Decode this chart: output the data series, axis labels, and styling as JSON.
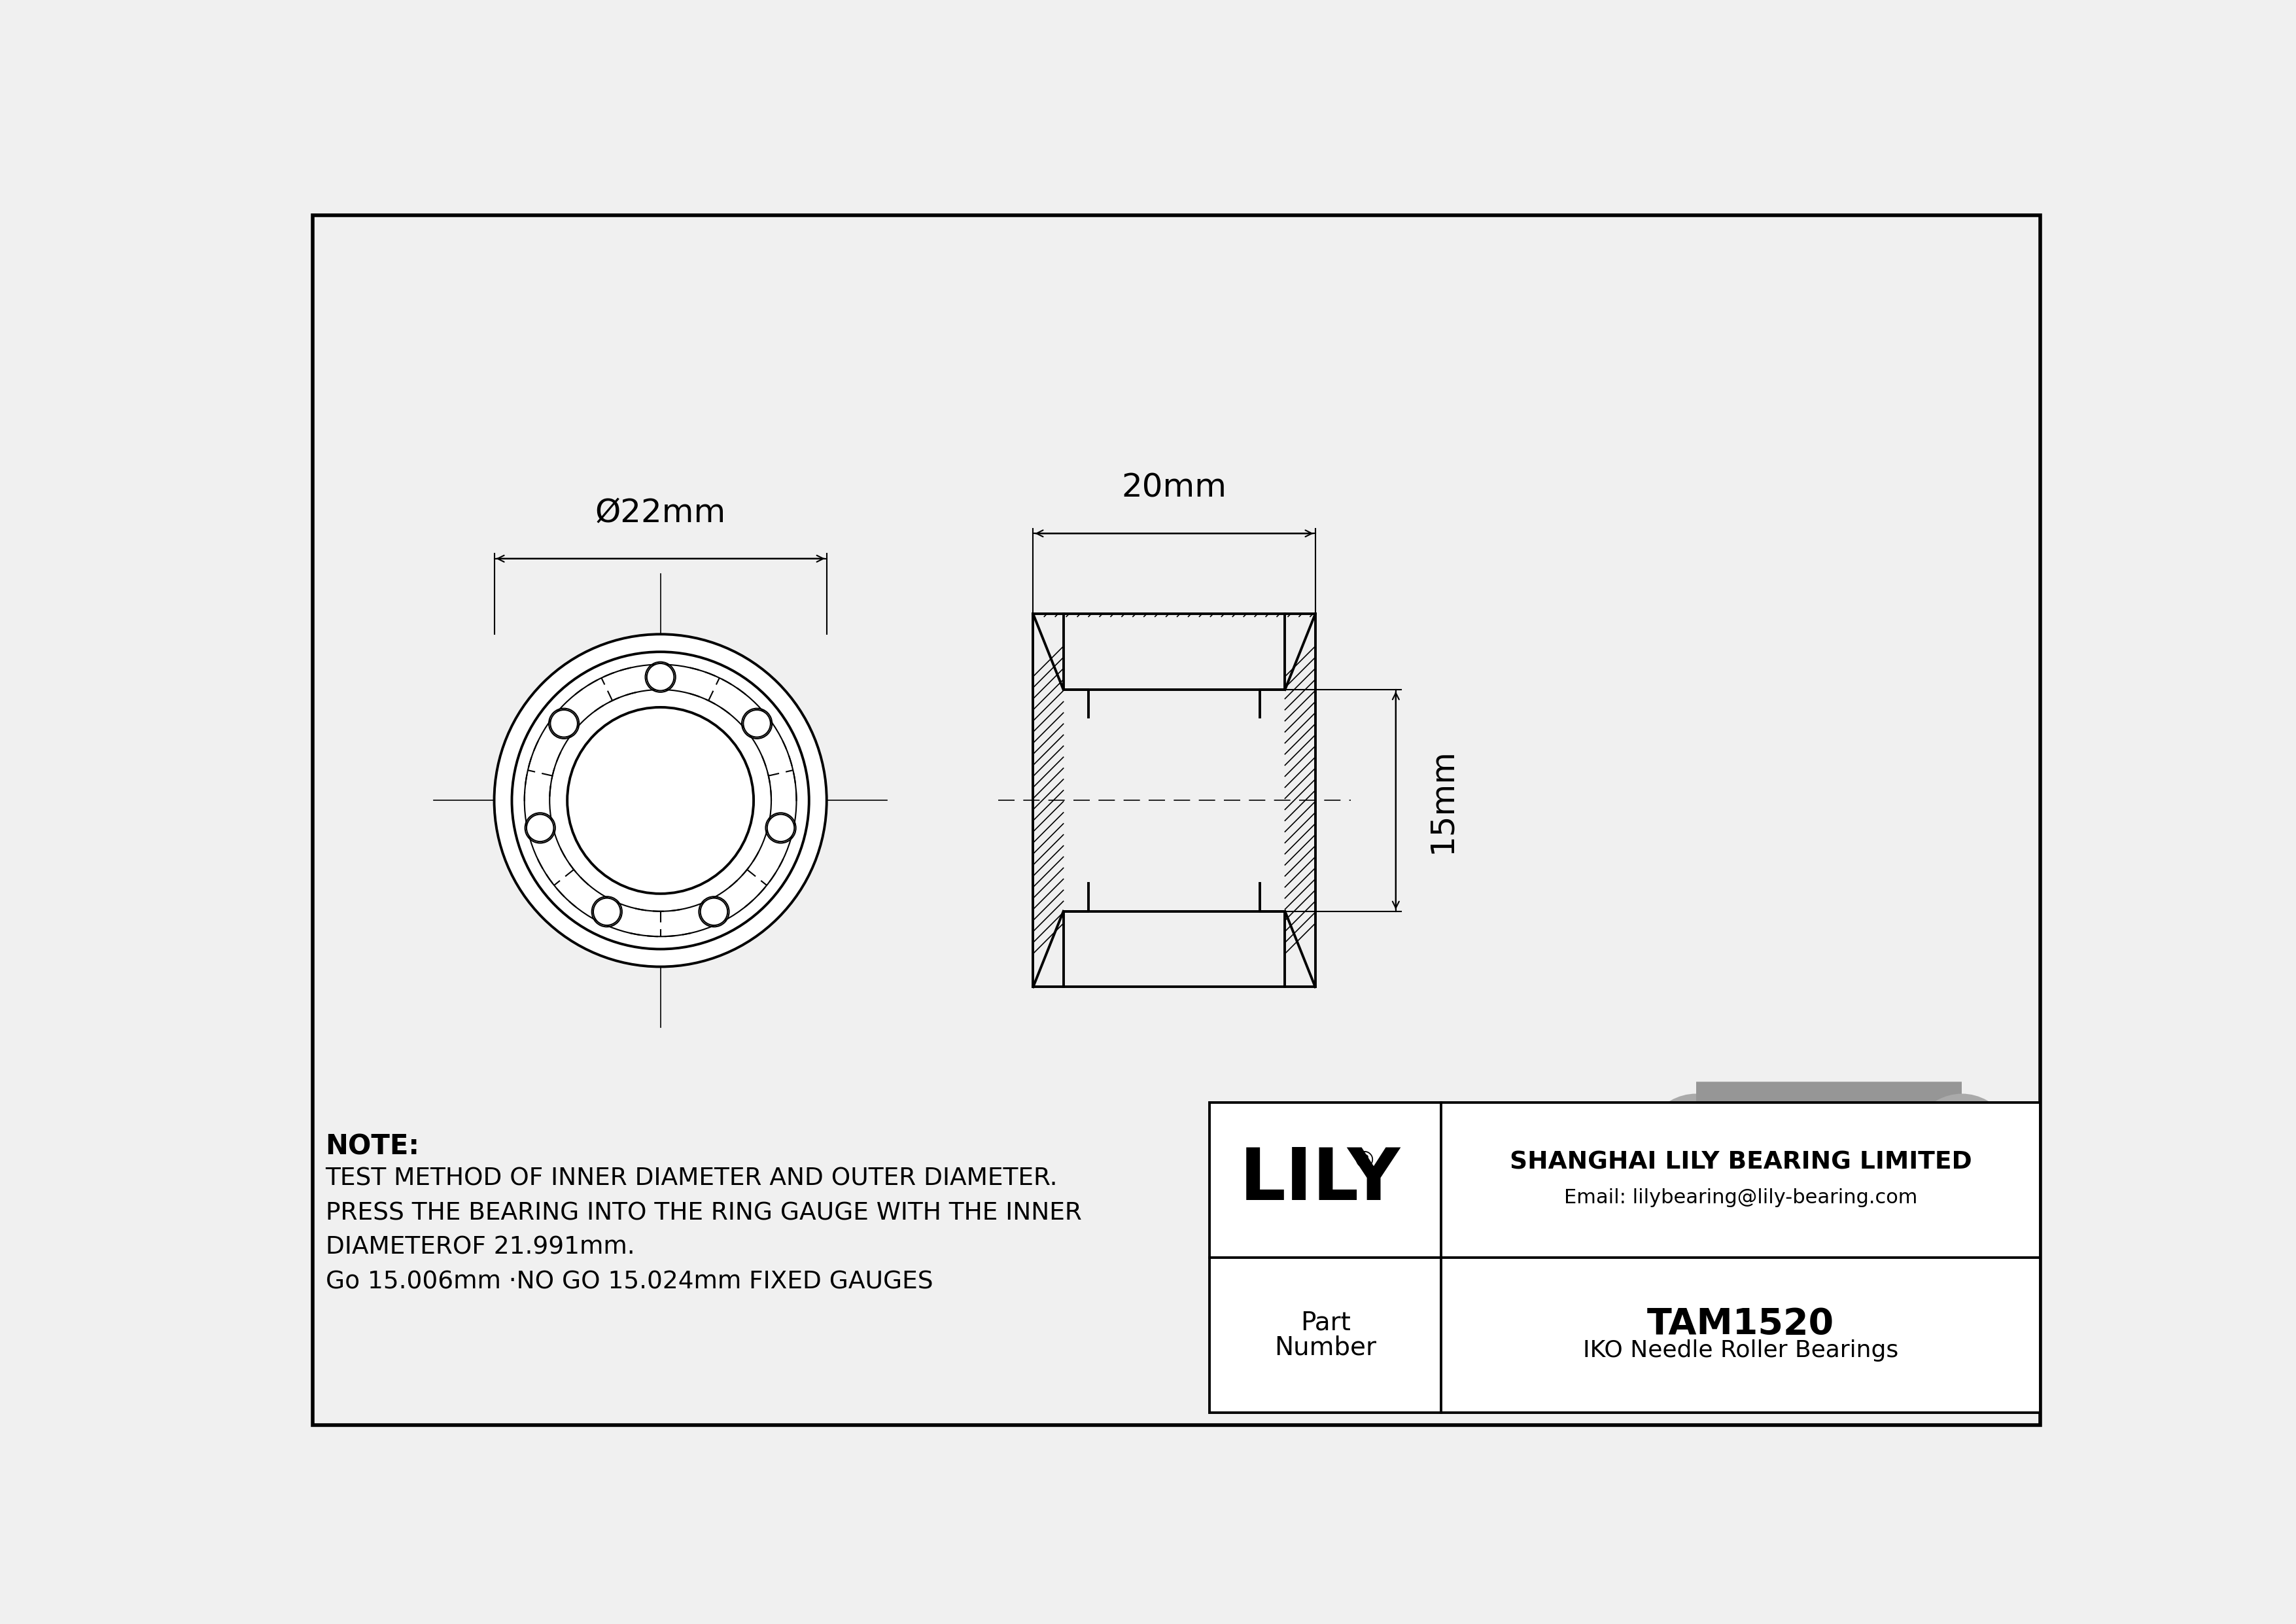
{
  "bg_color": "#f0f0f0",
  "line_color": "#000000",
  "part_number": "TAM1520",
  "bearing_type": "IKO Needle Roller Bearings",
  "company_name": "SHANGHAI LILY BEARING LIMITED",
  "company_email": "Email: lilybearing@lily-bearing.com",
  "logo_text": "LILY",
  "inner_diameter_label": "Ø22mm",
  "width_label": "20mm",
  "height_label": "15mm",
  "note_line1": "NOTE:",
  "note_line2": "TEST METHOD OF INNER DIAMETER AND OUTER DIAMETER.",
  "note_line3": "PRESS THE BEARING INTO THE RING GAUGE WITH THE INNER",
  "note_line4": "DIAMETEROF 21.991mm.",
  "note_line5": "Go 15.006mm ·NO GO 15.024mm FIXED GAUGES"
}
